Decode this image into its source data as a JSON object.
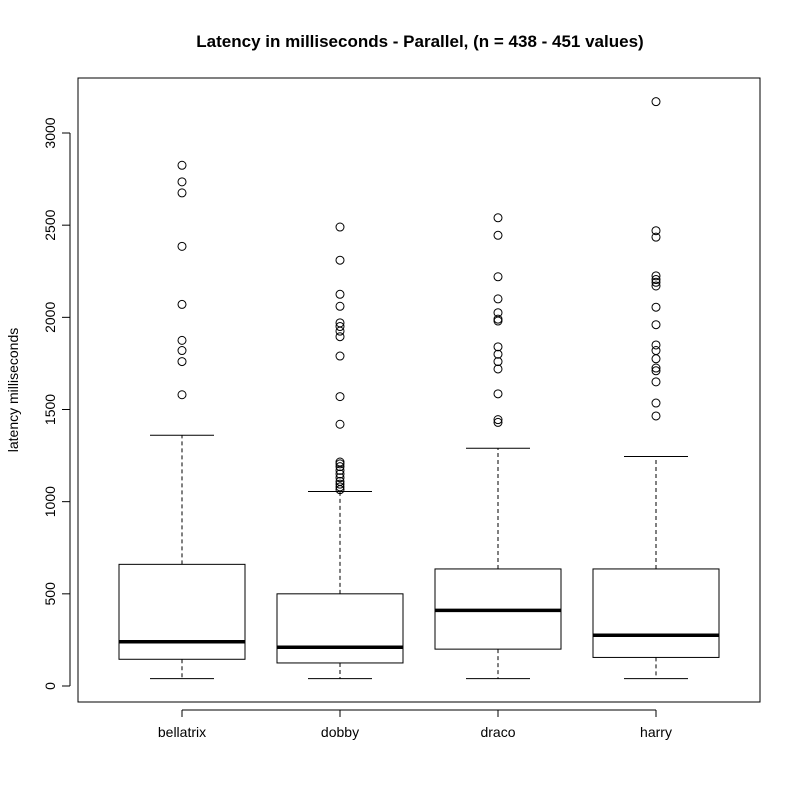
{
  "chart_data": {
    "type": "boxplot",
    "title": "Latency in milliseconds - Parallel,  (n = 438 - 451 values)",
    "xlabel": "",
    "ylabel": "latency milliseconds",
    "ylim": [
      0,
      3250
    ],
    "yticks": [
      0,
      500,
      1000,
      1500,
      2000,
      2500,
      3000
    ],
    "categories": [
      "bellatrix",
      "dobby",
      "draco",
      "harry"
    ],
    "boxes": [
      {
        "name": "bellatrix",
        "whisker_low": 40,
        "q1": 145,
        "median": 240,
        "q3": 660,
        "whisker_high": 1360,
        "outliers": [
          1580,
          1760,
          1820,
          1875,
          2070,
          2385,
          2675,
          2735,
          2825
        ]
      },
      {
        "name": "dobby",
        "whisker_low": 40,
        "q1": 125,
        "median": 210,
        "q3": 500,
        "whisker_high": 1055,
        "outliers": [
          1065,
          1080,
          1095,
          1110,
          1130,
          1150,
          1170,
          1190,
          1205,
          1215,
          1420,
          1570,
          1790,
          1895,
          1925,
          1950,
          1970,
          2060,
          2125,
          2310,
          2490
        ]
      },
      {
        "name": "draco",
        "whisker_low": 40,
        "q1": 200,
        "median": 410,
        "q3": 635,
        "whisker_high": 1290,
        "outliers": [
          1430,
          1445,
          1585,
          1720,
          1760,
          1800,
          1840,
          1980,
          1990,
          2025,
          2100,
          2220,
          2445,
          2540
        ]
      },
      {
        "name": "harry",
        "whisker_low": 40,
        "q1": 155,
        "median": 275,
        "q3": 635,
        "whisker_high": 1245,
        "outliers": [
          1465,
          1535,
          1650,
          1710,
          1725,
          1775,
          1820,
          1850,
          1960,
          2055,
          2170,
          2190,
          2205,
          2225,
          2435,
          2470,
          3170
        ]
      }
    ]
  }
}
